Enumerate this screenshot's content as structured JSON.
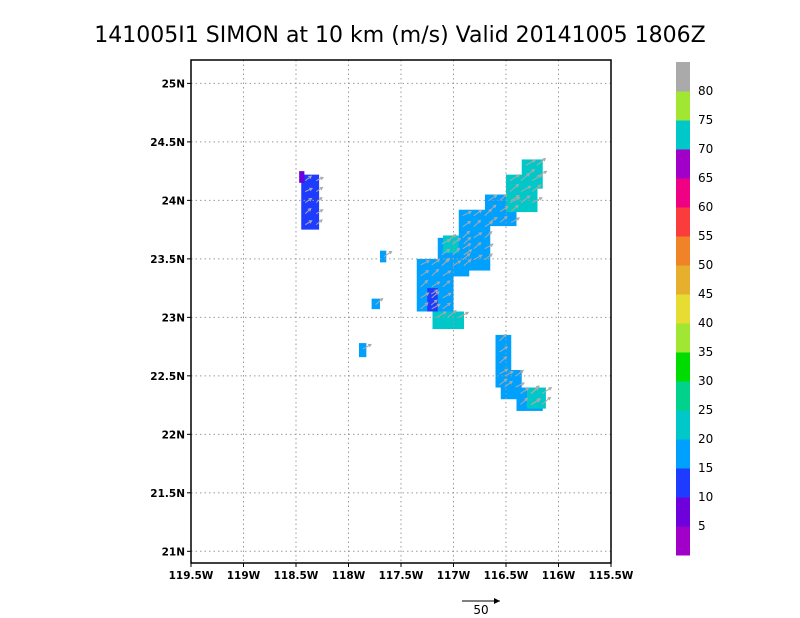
{
  "title": "141005I1  SIMON  at 10 km (m/s)  Valid 20141005  1806Z",
  "reference_vector": {
    "label": "50"
  },
  "colors": {
    "background": "#ffffff",
    "grid": "#9a9a9a",
    "vector": "#a9a9a9",
    "frame": "#000000"
  },
  "map": {
    "lon_range": [
      -119.5,
      -115.5
    ],
    "lat_range": [
      20.9,
      25.2
    ],
    "x_ticks": [
      {
        "lon": -119.5,
        "label": "119.5W"
      },
      {
        "lon": -119.0,
        "label": "119W"
      },
      {
        "lon": -118.5,
        "label": "118.5W"
      },
      {
        "lon": -118.0,
        "label": "118W"
      },
      {
        "lon": -117.5,
        "label": "117.5W"
      },
      {
        "lon": -117.0,
        "label": "117W"
      },
      {
        "lon": -116.5,
        "label": "116.5W"
      },
      {
        "lon": -116.0,
        "label": "116W"
      },
      {
        "lon": -115.5,
        "label": "115.5W"
      }
    ],
    "y_ticks": [
      {
        "lat": 25.0,
        "label": "25N"
      },
      {
        "lat": 24.5,
        "label": "24.5N"
      },
      {
        "lat": 24.0,
        "label": "24N"
      },
      {
        "lat": 23.5,
        "label": "23.5N"
      },
      {
        "lat": 23.0,
        "label": "23N"
      },
      {
        "lat": 22.5,
        "label": "22.5N"
      },
      {
        "lat": 22.0,
        "label": "22N"
      },
      {
        "lat": 21.5,
        "label": "21.5N"
      },
      {
        "lat": 21.0,
        "label": "21N"
      }
    ],
    "grid": true
  },
  "colorbar": {
    "colors": [
      "#a000c8",
      "#6e00dc",
      "#1e3cff",
      "#00a0ff",
      "#00c8c8",
      "#00d28c",
      "#00dc00",
      "#a0e632",
      "#e6dc32",
      "#e6af2d",
      "#f08228",
      "#fa3c3c",
      "#f00082",
      "#a000c8",
      "#00c8c8",
      "#a0e632",
      "#aaaaaa"
    ],
    "labels": [
      "5",
      "10",
      "15",
      "20",
      "25",
      "30",
      "35",
      "40",
      "45",
      "50",
      "55",
      "60",
      "65",
      "70",
      "75",
      "80"
    ]
  },
  "chart_data": {
    "type": "heatmap",
    "units": "m/s",
    "wind_regions": [
      {
        "lon": [
          -118.45,
          -118.28
        ],
        "lat": [
          23.75,
          24.22
        ],
        "speed_ms": 10
      },
      {
        "lon": [
          -118.47,
          -118.42
        ],
        "lat": [
          24.15,
          24.25
        ],
        "speed_ms": 5
      },
      {
        "lon": [
          -117.9,
          -117.83
        ],
        "lat": [
          22.66,
          22.78
        ],
        "speed_ms": 15
      },
      {
        "lon": [
          -117.78,
          -117.7
        ],
        "lat": [
          23.07,
          23.16
        ],
        "speed_ms": 15
      },
      {
        "lon": [
          -117.7,
          -117.64
        ],
        "lat": [
          23.47,
          23.57
        ],
        "speed_ms": 15
      },
      {
        "lon": [
          -117.35,
          -117.0
        ],
        "lat": [
          23.05,
          23.5
        ],
        "speed_ms": 15
      },
      {
        "lon": [
          -117.25,
          -117.15
        ],
        "lat": [
          23.05,
          23.25
        ],
        "speed_ms": 10
      },
      {
        "lon": [
          -117.15,
          -116.85
        ],
        "lat": [
          23.35,
          23.68
        ],
        "speed_ms": 15
      },
      {
        "lon": [
          -116.95,
          -116.65
        ],
        "lat": [
          23.4,
          23.92
        ],
        "speed_ms": 15
      },
      {
        "lon": [
          -116.7,
          -116.4
        ],
        "lat": [
          23.78,
          24.05
        ],
        "speed_ms": 15
      },
      {
        "lon": [
          -116.5,
          -116.2
        ],
        "lat": [
          23.9,
          24.22
        ],
        "speed_ms": 20
      },
      {
        "lon": [
          -116.35,
          -116.15
        ],
        "lat": [
          24.1,
          24.35
        ],
        "speed_ms": 20
      },
      {
        "lon": [
          -117.2,
          -116.9
        ],
        "lat": [
          22.9,
          23.05
        ],
        "speed_ms": 20
      },
      {
        "lon": [
          -116.6,
          -116.45
        ],
        "lat": [
          22.4,
          22.85
        ],
        "speed_ms": 15
      },
      {
        "lon": [
          -116.55,
          -116.35
        ],
        "lat": [
          22.3,
          22.55
        ],
        "speed_ms": 15
      },
      {
        "lon": [
          -116.4,
          -116.15
        ],
        "lat": [
          22.2,
          22.4
        ],
        "speed_ms": 15
      },
      {
        "lon": [
          -116.3,
          -116.12
        ],
        "lat": [
          22.22,
          22.4
        ],
        "speed_ms": 20
      },
      {
        "lon": [
          -117.1,
          -116.95
        ],
        "lat": [
          23.55,
          23.7
        ],
        "speed_ms": 20
      }
    ]
  }
}
